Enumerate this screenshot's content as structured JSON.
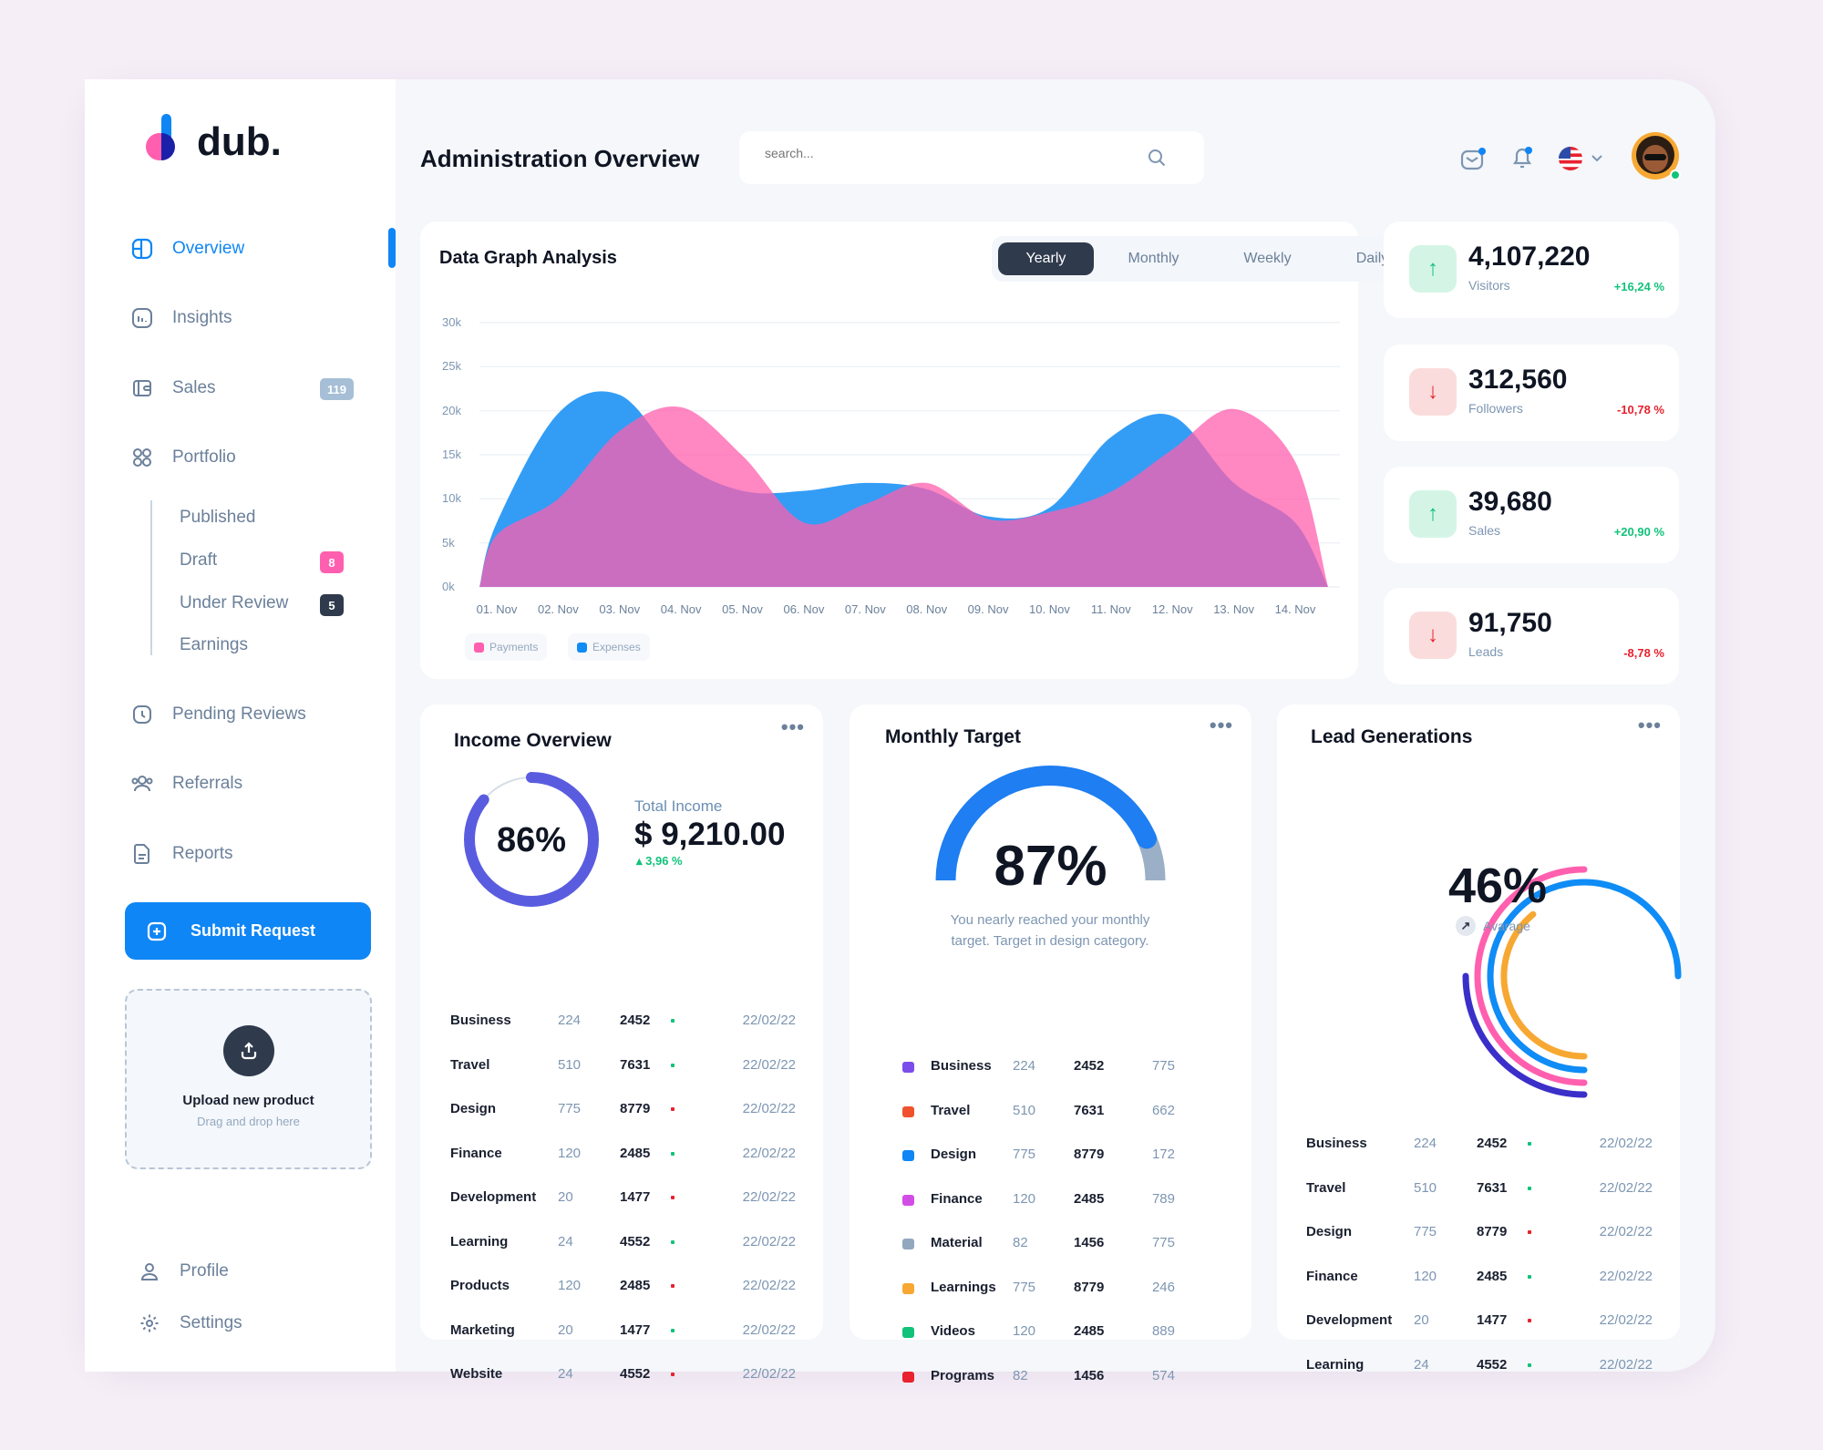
{
  "brand": {
    "name": "dub."
  },
  "header": {
    "title": "Administration Overview",
    "search_placeholder": "search..."
  },
  "sidebar": {
    "items": [
      {
        "label": "Overview",
        "icon": "overview-icon",
        "active": true
      },
      {
        "label": "Insights",
        "icon": "insights-icon"
      },
      {
        "label": "Sales",
        "icon": "wallet-icon",
        "badge": "119"
      },
      {
        "label": "Portfolio",
        "icon": "portfolio-icon"
      },
      {
        "label": "Pending Reviews",
        "icon": "clock-icon"
      },
      {
        "label": "Referrals",
        "icon": "users-icon"
      },
      {
        "label": "Reports",
        "icon": "document-icon"
      }
    ],
    "portfolio_sub": [
      {
        "label": "Published"
      },
      {
        "label": "Draft",
        "badge": "8"
      },
      {
        "label": "Under Review",
        "badge": "5"
      },
      {
        "label": "Earnings"
      }
    ],
    "submit_label": "Submit Request",
    "upload": {
      "title": "Upload new product",
      "subtitle": "Drag and drop here"
    },
    "profile_label": "Profile",
    "settings_label": "Settings"
  },
  "colors": {
    "accent": "#0f86f5",
    "payments": "#ff5fae",
    "expenses": "#0f8cf5",
    "up": "#12c27a",
    "down": "#e8222f",
    "dark": "#2f3a4c"
  },
  "graph": {
    "title": "Data Graph Analysis",
    "tabs": [
      "Yearly",
      "Monthly",
      "Weekly",
      "Daily"
    ],
    "active_tab": "Yearly"
  },
  "chart_data": {
    "type": "area",
    "categories": [
      "01. Nov",
      "02. Nov",
      "03. Nov",
      "04. Nov",
      "05. Nov",
      "06. Nov",
      "07. Nov",
      "08. Nov",
      "09. Nov",
      "10. Nov",
      "11. Nov",
      "12. Nov",
      "13. Nov",
      "14. Nov"
    ],
    "yticks": [
      "0k",
      "5k",
      "10k",
      "15k",
      "20k",
      "25k",
      "30k"
    ],
    "ylim": [
      0,
      30000
    ],
    "grid": true,
    "legend": "bottom-left",
    "series": [
      {
        "name": "Expenses",
        "color": "#0f8cf5",
        "values": [
          7300,
          19700,
          21800,
          14200,
          10900,
          10900,
          11800,
          11100,
          8000,
          9000,
          17000,
          19400,
          11800,
          7300
        ]
      },
      {
        "name": "Payments",
        "color": "#ff5fae",
        "values": [
          5900,
          10000,
          17700,
          20400,
          14900,
          7300,
          9400,
          11800,
          7700,
          8500,
          10800,
          15600,
          20200,
          14200
        ]
      }
    ]
  },
  "stats": [
    {
      "value": "4,107,220",
      "label": "Visitors",
      "change": "+16,24 %",
      "trend": "up"
    },
    {
      "value": "312,560",
      "label": "Followers",
      "change": "-10,78 %",
      "trend": "down"
    },
    {
      "value": "39,680",
      "label": "Sales",
      "change": "+20,90 %",
      "trend": "up"
    },
    {
      "value": "91,750",
      "label": "Leads",
      "change": "-8,78 %",
      "trend": "down"
    }
  ],
  "income": {
    "title": "Income Overview",
    "percent": "86%",
    "progress": 0.86,
    "total_label": "Total Income",
    "total": "$ 9,210.00",
    "change": "3,96 %",
    "rows": [
      {
        "name": "Business",
        "a": "224",
        "b": "2452",
        "trend": "up",
        "date": "22/02/22"
      },
      {
        "name": "Travel",
        "a": "510",
        "b": "7631",
        "trend": "up",
        "date": "22/02/22"
      },
      {
        "name": "Design",
        "a": "775",
        "b": "8779",
        "trend": "down",
        "date": "22/02/22"
      },
      {
        "name": "Finance",
        "a": "120",
        "b": "2485",
        "trend": "up",
        "date": "22/02/22"
      },
      {
        "name": "Development",
        "a": "20",
        "b": "1477",
        "trend": "down",
        "date": "22/02/22"
      },
      {
        "name": "Learning",
        "a": "24",
        "b": "4552",
        "trend": "up",
        "date": "22/02/22"
      },
      {
        "name": "Products",
        "a": "120",
        "b": "2485",
        "trend": "down",
        "date": "22/02/22"
      },
      {
        "name": "Marketing",
        "a": "20",
        "b": "1477",
        "trend": "up",
        "date": "22/02/22"
      },
      {
        "name": "Website",
        "a": "24",
        "b": "4552",
        "trend": "down",
        "date": "22/02/22"
      }
    ]
  },
  "target": {
    "title": "Monthly Target",
    "percent": "87%",
    "progress": 0.87,
    "message": "You nearly reached your monthly target. Target in design category.",
    "rows": [
      {
        "name": "Business",
        "a": "224",
        "b": "2452",
        "c": "775",
        "color": "#7b4dea"
      },
      {
        "name": "Travel",
        "a": "510",
        "b": "7631",
        "c": "662",
        "color": "#f0522e"
      },
      {
        "name": "Design",
        "a": "775",
        "b": "8779",
        "c": "172",
        "color": "#0f86f5"
      },
      {
        "name": "Finance",
        "a": "120",
        "b": "2485",
        "c": "789",
        "color": "#d24de6"
      },
      {
        "name": "Material",
        "a": "82",
        "b": "1456",
        "c": "775",
        "color": "#93a8bf"
      },
      {
        "name": "Learnings",
        "a": "775",
        "b": "8779",
        "c": "246",
        "color": "#f7a832"
      },
      {
        "name": "Videos",
        "a": "120",
        "b": "2485",
        "c": "889",
        "color": "#12c27a"
      },
      {
        "name": "Programs",
        "a": "82",
        "b": "1456",
        "c": "574",
        "color": "#e8222f"
      }
    ]
  },
  "leads": {
    "title": "Lead Generations",
    "percent": "46%",
    "caption": "Avarage",
    "rings": [
      {
        "color": "#3b2fc9",
        "fraction": 0.25
      },
      {
        "color": "#ff5fae",
        "fraction": 0.5
      },
      {
        "color": "#0f8cf5",
        "fraction": 0.75
      },
      {
        "color": "#f7a832",
        "fraction": 0.39
      }
    ],
    "rows": [
      {
        "name": "Business",
        "a": "224",
        "b": "2452",
        "trend": "up",
        "date": "22/02/22"
      },
      {
        "name": "Travel",
        "a": "510",
        "b": "7631",
        "trend": "up",
        "date": "22/02/22"
      },
      {
        "name": "Design",
        "a": "775",
        "b": "8779",
        "trend": "down",
        "date": "22/02/22"
      },
      {
        "name": "Finance",
        "a": "120",
        "b": "2485",
        "trend": "up",
        "date": "22/02/22"
      },
      {
        "name": "Development",
        "a": "20",
        "b": "1477",
        "trend": "down",
        "date": "22/02/22"
      },
      {
        "name": "Learning",
        "a": "24",
        "b": "4552",
        "trend": "up",
        "date": "22/02/22"
      }
    ]
  }
}
